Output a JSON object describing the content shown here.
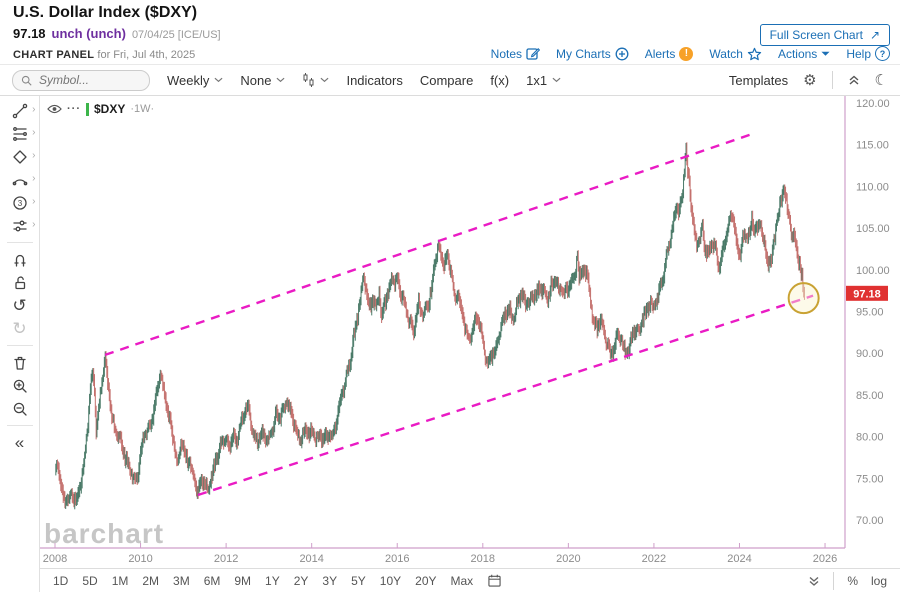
{
  "header": {
    "title": "U.S. Dollar Index ($DXY)",
    "price": "97.18",
    "change": "unch (unch)",
    "date_info": "07/04/25 [ICE/US]",
    "panel_label": "CHART PANEL",
    "panel_date": "for Fri, Jul 4th, 2025",
    "full_screen_label": "Full Screen Chart",
    "expand_arrow": "↗",
    "links": [
      {
        "label": "Notes",
        "icon": "notes-icon"
      },
      {
        "label": "My Charts",
        "icon": "circle-plus-icon"
      },
      {
        "label": "Alerts",
        "icon": "alert-icon"
      },
      {
        "label": "Watch",
        "icon": "star-icon"
      },
      {
        "label": "Actions",
        "icon": "caret-down-icon"
      },
      {
        "label": "Help",
        "icon": "help-icon"
      }
    ],
    "link_color": "#1b6fb5",
    "change_color": "#6e2f9f"
  },
  "toolbar": {
    "symbol_placeholder": "Symbol...",
    "frequency": "Weekly",
    "overlay": "None",
    "indicators": "Indicators",
    "compare": "Compare",
    "fx": "f(x)",
    "layout": "1x1",
    "templates": "Templates",
    "gear_glyph": "⚙",
    "moon_glyph": "☾"
  },
  "legend": {
    "symbol": "$DXY",
    "period": "·1W·",
    "series_color": "#3cb54a",
    "dots_glyph": "···"
  },
  "sidebar": {
    "groups": [
      [
        {
          "name": "trendline-tool",
          "submenu": true
        },
        {
          "name": "fibonacci-tool",
          "submenu": true
        },
        {
          "name": "shapes-tool",
          "submenu": true
        },
        {
          "name": "arc-tool",
          "submenu": true
        },
        {
          "name": "annotations-tool",
          "submenu": true
        },
        {
          "name": "drawing-settings-tool",
          "submenu": true
        }
      ],
      [
        {
          "name": "magnet-tool"
        },
        {
          "name": "unlock-tool"
        },
        {
          "name": "undo-tool",
          "glyph": "↺"
        },
        {
          "name": "redo-tool",
          "glyph": "↻",
          "disabled": true
        }
      ],
      [
        {
          "name": "delete-tool"
        },
        {
          "name": "zoom-in-tool"
        },
        {
          "name": "zoom-out-tool"
        }
      ],
      [
        {
          "name": "collapse-sidebar",
          "glyph": "«"
        }
      ]
    ]
  },
  "chart_data": {
    "type": "candlestick",
    "symbol": "$DXY",
    "frequency": "weekly",
    "title": "U.S. Dollar Index weekly with rising price channel",
    "x_ticks": [
      2008,
      2010,
      2012,
      2014,
      2016,
      2018,
      2020,
      2022,
      2024,
      2026
    ],
    "y_ticks": [
      70,
      75,
      80,
      85,
      90,
      95,
      100,
      105,
      110,
      115,
      120
    ],
    "y_tick_format": "0.00",
    "x_range": [
      2007.6,
      2026.4
    ],
    "y_range": [
      66.6,
      120.8
    ],
    "grid": false,
    "last_price": "97.18",
    "last_price_bg": "#e03131",
    "up_color": "#4a7a68",
    "down_color": "#c4706d",
    "axis_text_color": "#8c8c8c",
    "frame_color": "#cf9fca",
    "watermark": "barchart",
    "watermark_color": "#c6c6c6",
    "series_end": 2025.52,
    "series_keypoints": [
      [
        2008,
        76.5
      ],
      [
        2008.08,
        75.8
      ],
      [
        2008.17,
        73.8
      ],
      [
        2008.22,
        71.9
      ],
      [
        2008.3,
        72.6
      ],
      [
        2008.4,
        72.9
      ],
      [
        2008.5,
        72.4
      ],
      [
        2008.58,
        73.6
      ],
      [
        2008.67,
        77
      ],
      [
        2008.75,
        80.5
      ],
      [
        2008.83,
        86
      ],
      [
        2008.88,
        87.4
      ],
      [
        2008.92,
        85.8
      ],
      [
        2008.96,
        80.8
      ],
      [
        2009,
        82.5
      ],
      [
        2009.08,
        86
      ],
      [
        2009.17,
        89.3
      ],
      [
        2009.25,
        85.5
      ],
      [
        2009.33,
        82.5
      ],
      [
        2009.42,
        80.5
      ],
      [
        2009.5,
        79.8
      ],
      [
        2009.58,
        78.5
      ],
      [
        2009.67,
        77
      ],
      [
        2009.75,
        76.3
      ],
      [
        2009.83,
        75.2
      ],
      [
        2009.92,
        74.8
      ],
      [
        2010,
        77.8
      ],
      [
        2010.08,
        80.2
      ],
      [
        2010.17,
        81
      ],
      [
        2010.25,
        81.5
      ],
      [
        2010.33,
        84
      ],
      [
        2010.42,
        86.5
      ],
      [
        2010.46,
        88
      ],
      [
        2010.54,
        85.5
      ],
      [
        2010.63,
        83
      ],
      [
        2010.71,
        81.5
      ],
      [
        2010.79,
        78.8
      ],
      [
        2010.87,
        76.2
      ],
      [
        2010.94,
        79.8
      ],
      [
        2011,
        78.5
      ],
      [
        2011.08,
        77.5
      ],
      [
        2011.17,
        76.5
      ],
      [
        2011.25,
        75
      ],
      [
        2011.33,
        73
      ],
      [
        2011.42,
        74.8
      ],
      [
        2011.5,
        74.2
      ],
      [
        2011.58,
        73.8
      ],
      [
        2011.67,
        75
      ],
      [
        2011.75,
        77.2
      ],
      [
        2011.83,
        78
      ],
      [
        2011.92,
        80
      ],
      [
        2012,
        79.3
      ],
      [
        2012.08,
        78.8
      ],
      [
        2012.17,
        79.8
      ],
      [
        2012.25,
        79.5
      ],
      [
        2012.33,
        81.5
      ],
      [
        2012.42,
        82.8
      ],
      [
        2012.5,
        83.5
      ],
      [
        2012.58,
        82
      ],
      [
        2012.67,
        79.8
      ],
      [
        2012.75,
        79.5
      ],
      [
        2012.83,
        80.2
      ],
      [
        2012.92,
        79.8
      ],
      [
        2013,
        79.8
      ],
      [
        2013.08,
        80.8
      ],
      [
        2013.17,
        82.8
      ],
      [
        2013.25,
        82.2
      ],
      [
        2013.33,
        83.2
      ],
      [
        2013.42,
        84.2
      ],
      [
        2013.5,
        83
      ],
      [
        2013.58,
        81.5
      ],
      [
        2013.67,
        80.3
      ],
      [
        2013.75,
        79.8
      ],
      [
        2013.83,
        80.7
      ],
      [
        2013.92,
        80.3
      ],
      [
        2014,
        80.6
      ],
      [
        2014.08,
        80
      ],
      [
        2014.17,
        79.9
      ],
      [
        2014.25,
        79.6
      ],
      [
        2014.33,
        80
      ],
      [
        2014.42,
        80.3
      ],
      [
        2014.5,
        80.2
      ],
      [
        2014.58,
        81.5
      ],
      [
        2014.67,
        84.5
      ],
      [
        2014.75,
        86
      ],
      [
        2014.83,
        87.8
      ],
      [
        2014.92,
        89.5
      ],
      [
        2015,
        92.3
      ],
      [
        2015.08,
        94.8
      ],
      [
        2015.17,
        97.5
      ],
      [
        2015.21,
        99.6
      ],
      [
        2015.29,
        97
      ],
      [
        2015.33,
        95
      ],
      [
        2015.42,
        96.5
      ],
      [
        2015.5,
        95.8
      ],
      [
        2015.58,
        97.5
      ],
      [
        2015.63,
        94
      ],
      [
        2015.71,
        96.2
      ],
      [
        2015.79,
        97
      ],
      [
        2015.87,
        99.3
      ],
      [
        2015.94,
        98.3
      ],
      [
        2016,
        99
      ],
      [
        2016.08,
        97
      ],
      [
        2016.17,
        95.8
      ],
      [
        2016.25,
        94.5
      ],
      [
        2016.33,
        93
      ],
      [
        2016.38,
        92.6
      ],
      [
        2016.46,
        94.8
      ],
      [
        2016.5,
        96.2
      ],
      [
        2016.54,
        95
      ],
      [
        2016.63,
        94.8
      ],
      [
        2016.71,
        95.5
      ],
      [
        2016.79,
        97.3
      ],
      [
        2016.87,
        100.8
      ],
      [
        2016.96,
        102.9
      ],
      [
        2017,
        102.2
      ],
      [
        2017.08,
        100.5
      ],
      [
        2017.17,
        101.5
      ],
      [
        2017.25,
        100
      ],
      [
        2017.33,
        97.2
      ],
      [
        2017.42,
        96.8
      ],
      [
        2017.5,
        95.2
      ],
      [
        2017.58,
        93.2
      ],
      [
        2017.67,
        92
      ],
      [
        2017.71,
        91.5
      ],
      [
        2017.79,
        93.2
      ],
      [
        2017.87,
        94.5
      ],
      [
        2017.96,
        92.8
      ],
      [
        2018,
        91.8
      ],
      [
        2018.08,
        89.2
      ],
      [
        2018.13,
        88.8
      ],
      [
        2018.21,
        89.8
      ],
      [
        2018.29,
        90
      ],
      [
        2018.38,
        92.5
      ],
      [
        2018.46,
        94
      ],
      [
        2018.54,
        94.8
      ],
      [
        2018.63,
        95
      ],
      [
        2018.71,
        94.2
      ],
      [
        2018.79,
        95.8
      ],
      [
        2018.87,
        96.8
      ],
      [
        2018.96,
        96.8
      ],
      [
        2019,
        95.8
      ],
      [
        2019.08,
        96.5
      ],
      [
        2019.17,
        96.8
      ],
      [
        2019.25,
        97.3
      ],
      [
        2019.33,
        97.5
      ],
      [
        2019.42,
        97.8
      ],
      [
        2019.5,
        96.3
      ],
      [
        2019.58,
        98
      ],
      [
        2019.67,
        98.3
      ],
      [
        2019.71,
        99
      ],
      [
        2019.79,
        97.5
      ],
      [
        2019.87,
        98
      ],
      [
        2019.96,
        97.2
      ],
      [
        2020,
        97.5
      ],
      [
        2020.08,
        99
      ],
      [
        2020.17,
        99.5
      ],
      [
        2020.21,
        102.6
      ],
      [
        2020.25,
        99
      ],
      [
        2020.33,
        100
      ],
      [
        2020.42,
        99.7
      ],
      [
        2020.5,
        97.3
      ],
      [
        2020.58,
        93.5
      ],
      [
        2020.67,
        93
      ],
      [
        2020.75,
        93.8
      ],
      [
        2020.83,
        92.8
      ],
      [
        2020.92,
        91
      ],
      [
        2021,
        89.9
      ],
      [
        2021.08,
        90.8
      ],
      [
        2021.17,
        92.3
      ],
      [
        2021.25,
        91.5
      ],
      [
        2021.33,
        90.2
      ],
      [
        2021.42,
        90.5
      ],
      [
        2021.5,
        92.5
      ],
      [
        2021.58,
        92.8
      ],
      [
        2021.67,
        93.3
      ],
      [
        2021.75,
        94
      ],
      [
        2021.83,
        95.2
      ],
      [
        2021.92,
        96.1
      ],
      [
        2022,
        95.7
      ],
      [
        2022.08,
        96.2
      ],
      [
        2022.17,
        98.5
      ],
      [
        2022.25,
        99.8
      ],
      [
        2022.33,
        103
      ],
      [
        2022.42,
        104.5
      ],
      [
        2022.5,
        106.8
      ],
      [
        2022.54,
        108
      ],
      [
        2022.58,
        106.5
      ],
      [
        2022.67,
        109.5
      ],
      [
        2022.71,
        112.3
      ],
      [
        2022.75,
        114.2
      ],
      [
        2022.79,
        111.5
      ],
      [
        2022.83,
        110.8
      ],
      [
        2022.87,
        107.5
      ],
      [
        2022.92,
        105.5
      ],
      [
        2022.96,
        104.2
      ],
      [
        2023,
        103.3
      ],
      [
        2023.08,
        103.8
      ],
      [
        2023.13,
        105.2
      ],
      [
        2023.17,
        103.5
      ],
      [
        2023.21,
        102.2
      ],
      [
        2023.25,
        101.8
      ],
      [
        2023.33,
        102.8
      ],
      [
        2023.42,
        103.3
      ],
      [
        2023.5,
        100.3
      ],
      [
        2023.54,
        100
      ],
      [
        2023.63,
        102.8
      ],
      [
        2023.71,
        104.8
      ],
      [
        2023.79,
        106.3
      ],
      [
        2023.83,
        106.6
      ],
      [
        2023.87,
        105.5
      ],
      [
        2023.92,
        103.8
      ],
      [
        2023.96,
        102.3
      ],
      [
        2024,
        101.7
      ],
      [
        2024.08,
        103.8
      ],
      [
        2024.17,
        104.3
      ],
      [
        2024.25,
        104.5
      ],
      [
        2024.29,
        106
      ],
      [
        2024.33,
        105
      ],
      [
        2024.42,
        104.6
      ],
      [
        2024.5,
        105.6
      ],
      [
        2024.54,
        104.2
      ],
      [
        2024.58,
        103.3
      ],
      [
        2024.63,
        101.3
      ],
      [
        2024.71,
        100.6
      ],
      [
        2024.75,
        100.8
      ],
      [
        2024.79,
        103.3
      ],
      [
        2024.83,
        104.3
      ],
      [
        2024.87,
        106.2
      ],
      [
        2024.92,
        106.8
      ],
      [
        2024.96,
        108.2
      ],
      [
        2025,
        108.9
      ],
      [
        2025.04,
        110
      ],
      [
        2025.08,
        108
      ],
      [
        2025.13,
        107.3
      ],
      [
        2025.17,
        106.8
      ],
      [
        2025.21,
        104.2
      ],
      [
        2025.25,
        103.8
      ],
      [
        2025.29,
        104.3
      ],
      [
        2025.33,
        102.8
      ],
      [
        2025.37,
        101.3
      ],
      [
        2025.42,
        99.8
      ],
      [
        2025.46,
        99.2
      ],
      [
        2025.5,
        97.5
      ],
      [
        2025.52,
        97.18
      ]
    ],
    "channel": {
      "color": "#ea1bc4",
      "dash": "9 7",
      "upper": [
        [
          2009.17,
          89.8
        ],
        [
          2024.25,
          116.2
        ]
      ],
      "lower": [
        [
          2011.34,
          73.0
        ],
        [
          2025.72,
          96.9
        ]
      ]
    },
    "highlight_circle": {
      "x": 2025.5,
      "y": 96.6,
      "radius": 15,
      "stroke": "#c9a233",
      "fill": "#faf3cf"
    }
  },
  "bottom_bar": {
    "periods": [
      "1D",
      "5D",
      "1M",
      "2M",
      "3M",
      "6M",
      "9M",
      "1Y",
      "2Y",
      "3Y",
      "5Y",
      "10Y",
      "20Y",
      "Max"
    ],
    "percent": "%",
    "log": "log"
  }
}
